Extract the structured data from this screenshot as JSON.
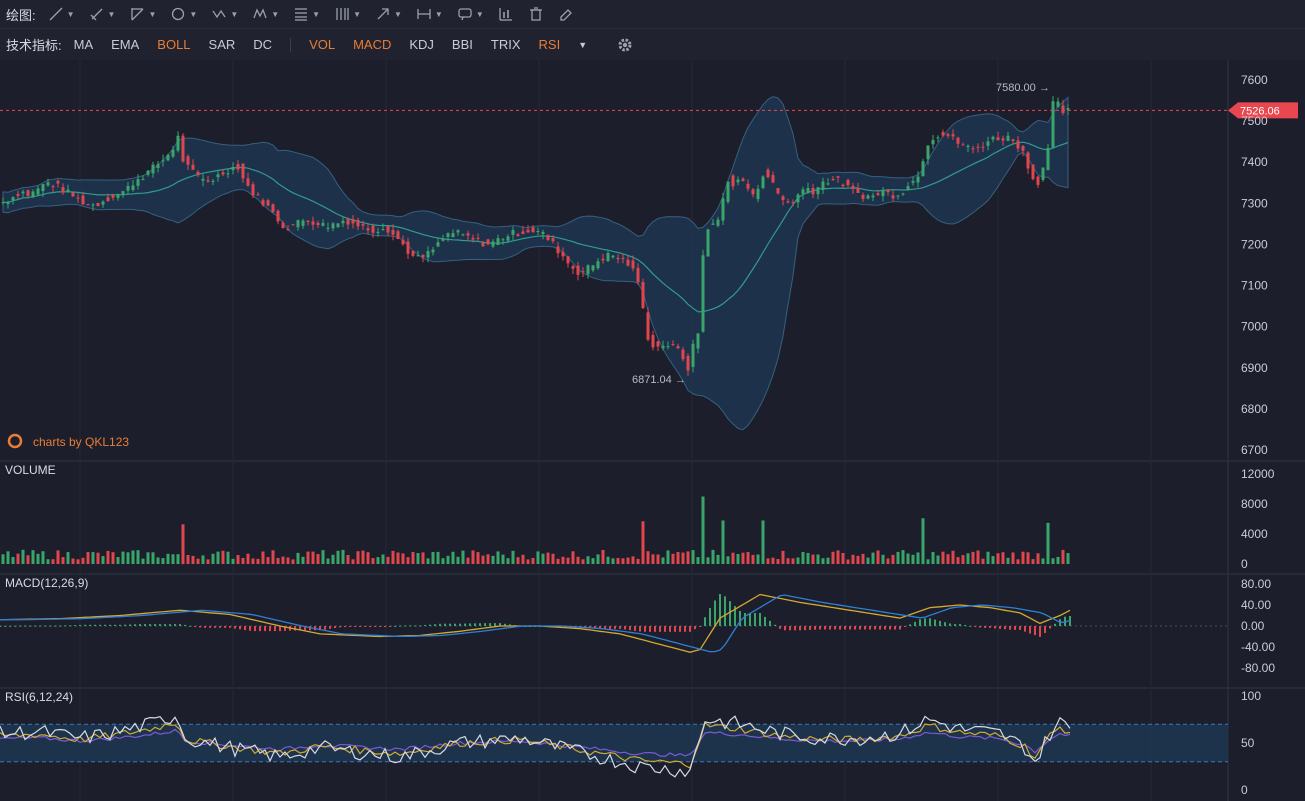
{
  "toolbar": {
    "draw_label": "绘图:",
    "tools": [
      {
        "icon": "line-tool-icon"
      },
      {
        "icon": "ray-tool-icon"
      },
      {
        "icon": "channel-tool-icon"
      },
      {
        "icon": "circle-tool-icon"
      },
      {
        "icon": "wave-tool-icon"
      },
      {
        "icon": "pattern-tool-icon"
      },
      {
        "icon": "fib-tool-icon"
      },
      {
        "icon": "gann-tool-icon"
      },
      {
        "icon": "arrow-tool-icon"
      },
      {
        "icon": "measure-tool-icon"
      },
      {
        "icon": "comment-tool-icon"
      },
      {
        "icon": "chart-stats-icon"
      },
      {
        "icon": "trash-icon"
      },
      {
        "icon": "eraser-icon"
      }
    ],
    "indicator_label": "技术指标:",
    "main_indicators": [
      {
        "label": "MA",
        "active": false
      },
      {
        "label": "EMA",
        "active": false
      },
      {
        "label": "BOLL",
        "active": true
      },
      {
        "label": "SAR",
        "active": false
      },
      {
        "label": "DC",
        "active": false
      }
    ],
    "sub_indicators": [
      {
        "label": "VOL",
        "active": true
      },
      {
        "label": "MACD",
        "active": true
      },
      {
        "label": "KDJ",
        "active": false
      },
      {
        "label": "BBI",
        "active": false
      },
      {
        "label": "TRIX",
        "active": false
      },
      {
        "label": "RSI",
        "active": true
      }
    ]
  },
  "colors": {
    "background": "#1c1f2b",
    "up": "#3aa56a",
    "down": "#e0464e",
    "band_fill": "#1e3550",
    "band_line": "#35607f",
    "mid_line": "#2f9c8e",
    "accent": "#e97d36",
    "price_tag": "#e9474f",
    "macd_fast": "#2f7fd4",
    "macd_slow": "#d4a930",
    "rsi_6": "#d8dae2",
    "rsi_12": "#d4a930",
    "rsi_24": "#7a5ad6"
  },
  "chart_data": {
    "type": "candlestick",
    "watermark": "charts by QKL123",
    "current_price": "7526.06",
    "high_label": "7580.00",
    "low_label": "6871.04",
    "price_axis": {
      "ticks": [
        "7600",
        "7500",
        "7400",
        "7300",
        "7200",
        "7100",
        "7000",
        "6900",
        "6800",
        "6700"
      ],
      "range": [
        6680,
        7650
      ]
    },
    "panels": {
      "volume": {
        "title": "VOLUME",
        "ticks": [
          "12000",
          "8000",
          "4000",
          "0"
        ],
        "range": [
          0,
          12000
        ]
      },
      "macd": {
        "title": "MACD(12,26,9)",
        "ticks": [
          "80.00",
          "40.00",
          "0.00",
          "-40.00",
          "-80.00"
        ],
        "range": [
          -80,
          80
        ]
      },
      "rsi": {
        "title": "RSI(6,12,24)",
        "ticks": [
          "100",
          "50",
          "0"
        ],
        "range": [
          0,
          100
        ],
        "bands": [
          30,
          70
        ]
      }
    },
    "price_path": [
      [
        0,
        7300
      ],
      [
        10,
        7310
      ],
      [
        20,
        7330
      ],
      [
        30,
        7320
      ],
      [
        40,
        7340
      ],
      [
        48,
        7350
      ],
      [
        55,
        7345
      ],
      [
        65,
        7330
      ],
      [
        75,
        7315
      ],
      [
        85,
        7300
      ],
      [
        95,
        7295
      ],
      [
        105,
        7310
      ],
      [
        115,
        7320
      ],
      [
        125,
        7330
      ],
      [
        135,
        7355
      ],
      [
        145,
        7370
      ],
      [
        155,
        7390
      ],
      [
        165,
        7410
      ],
      [
        172,
        7430
      ],
      [
        178,
        7460
      ],
      [
        182,
        7410
      ],
      [
        190,
        7380
      ],
      [
        200,
        7360
      ],
      [
        210,
        7355
      ],
      [
        220,
        7370
      ],
      [
        230,
        7385
      ],
      [
        238,
        7390
      ],
      [
        245,
        7350
      ],
      [
        255,
        7320
      ],
      [
        265,
        7300
      ],
      [
        275,
        7270
      ],
      [
        285,
        7240
      ],
      [
        295,
        7250
      ],
      [
        305,
        7260
      ],
      [
        315,
        7255
      ],
      [
        325,
        7245
      ],
      [
        335,
        7250
      ],
      [
        345,
        7260
      ],
      [
        355,
        7250
      ],
      [
        365,
        7240
      ],
      [
        375,
        7235
      ],
      [
        385,
        7245
      ],
      [
        395,
        7220
      ],
      [
        405,
        7195
      ],
      [
        412,
        7170
      ],
      [
        420,
        7165
      ],
      [
        430,
        7180
      ],
      [
        440,
        7205
      ],
      [
        450,
        7230
      ],
      [
        460,
        7225
      ],
      [
        470,
        7215
      ],
      [
        480,
        7205
      ],
      [
        490,
        7200
      ],
      [
        500,
        7215
      ],
      [
        510,
        7225
      ],
      [
        520,
        7230
      ],
      [
        530,
        7235
      ],
      [
        540,
        7230
      ],
      [
        550,
        7210
      ],
      [
        560,
        7180
      ],
      [
        570,
        7150
      ],
      [
        580,
        7130
      ],
      [
        590,
        7145
      ],
      [
        600,
        7165
      ],
      [
        610,
        7175
      ],
      [
        620,
        7165
      ],
      [
        630,
        7150
      ],
      [
        640,
        7100
      ],
      [
        645,
        7000
      ],
      [
        650,
        6960
      ],
      [
        658,
        6950
      ],
      [
        665,
        6960
      ],
      [
        672,
        6950
      ],
      [
        680,
        6940
      ],
      [
        688,
        6900
      ],
      [
        694,
        6960
      ],
      [
        700,
        7000
      ],
      [
        704,
        7230
      ],
      [
        710,
        7250
      ],
      [
        716,
        7240
      ],
      [
        722,
        7300
      ],
      [
        728,
        7360
      ],
      [
        734,
        7340
      ],
      [
        740,
        7360
      ],
      [
        746,
        7350
      ],
      [
        752,
        7310
      ],
      [
        758,
        7340
      ],
      [
        764,
        7380
      ],
      [
        770,
        7360
      ],
      [
        776,
        7330
      ],
      [
        782,
        7310
      ],
      [
        790,
        7300
      ],
      [
        798,
        7320
      ],
      [
        806,
        7340
      ],
      [
        814,
        7330
      ],
      [
        822,
        7350
      ],
      [
        832,
        7360
      ],
      [
        842,
        7350
      ],
      [
        852,
        7330
      ],
      [
        862,
        7320
      ],
      [
        872,
        7315
      ],
      [
        882,
        7330
      ],
      [
        892,
        7320
      ],
      [
        902,
        7330
      ],
      [
        912,
        7350
      ],
      [
        920,
        7380
      ],
      [
        926,
        7440
      ],
      [
        932,
        7460
      ],
      [
        940,
        7470
      ],
      [
        948,
        7465
      ],
      [
        956,
        7450
      ],
      [
        964,
        7440
      ],
      [
        972,
        7430
      ],
      [
        980,
        7440
      ],
      [
        990,
        7455
      ],
      [
        1000,
        7460
      ],
      [
        1008,
        7460
      ],
      [
        1016,
        7450
      ],
      [
        1024,
        7420
      ],
      [
        1030,
        7380
      ],
      [
        1036,
        7340
      ],
      [
        1042,
        7380
      ],
      [
        1048,
        7430
      ],
      [
        1052,
        7540
      ],
      [
        1058,
        7540
      ],
      [
        1064,
        7520
      ],
      [
        1070,
        7526
      ]
    ],
    "vol_spikes": {
      "183": 5300,
      "645": 5700,
      "703": 9000,
      "723": 5800,
      "762": 5800,
      "925": 6100,
      "1050": 5500
    },
    "macd_path": [
      [
        0,
        12
      ],
      [
        60,
        14
      ],
      [
        120,
        20
      ],
      [
        180,
        30
      ],
      [
        230,
        22
      ],
      [
        280,
        0
      ],
      [
        320,
        -15
      ],
      [
        380,
        -20
      ],
      [
        420,
        -18
      ],
      [
        460,
        -10
      ],
      [
        500,
        0
      ],
      [
        540,
        0
      ],
      [
        580,
        -5
      ],
      [
        620,
        -15
      ],
      [
        660,
        -35
      ],
      [
        690,
        -50
      ],
      [
        700,
        -45
      ],
      [
        720,
        15
      ],
      [
        760,
        60
      ],
      [
        800,
        45
      ],
      [
        850,
        30
      ],
      [
        900,
        15
      ],
      [
        930,
        35
      ],
      [
        960,
        40
      ],
      [
        990,
        35
      ],
      [
        1020,
        25
      ],
      [
        1040,
        5
      ],
      [
        1060,
        20
      ],
      [
        1070,
        30
      ]
    ],
    "rsi_path": [
      [
        0,
        60
      ],
      [
        40,
        62
      ],
      [
        80,
        55
      ],
      [
        110,
        60
      ],
      [
        150,
        70
      ],
      [
        178,
        80
      ],
      [
        185,
        55
      ],
      [
        230,
        45
      ],
      [
        280,
        35
      ],
      [
        320,
        45
      ],
      [
        360,
        40
      ],
      [
        400,
        35
      ],
      [
        420,
        40
      ],
      [
        460,
        50
      ],
      [
        520,
        55
      ],
      [
        560,
        45
      ],
      [
        600,
        35
      ],
      [
        640,
        25
      ],
      [
        670,
        22
      ],
      [
        690,
        20
      ],
      [
        705,
        75
      ],
      [
        740,
        70
      ],
      [
        780,
        60
      ],
      [
        820,
        55
      ],
      [
        860,
        55
      ],
      [
        900,
        60
      ],
      [
        928,
        75
      ],
      [
        960,
        65
      ],
      [
        1000,
        60
      ],
      [
        1025,
        45
      ],
      [
        1035,
        30
      ],
      [
        1050,
        60
      ],
      [
        1060,
        72
      ],
      [
        1070,
        66
      ]
    ]
  }
}
